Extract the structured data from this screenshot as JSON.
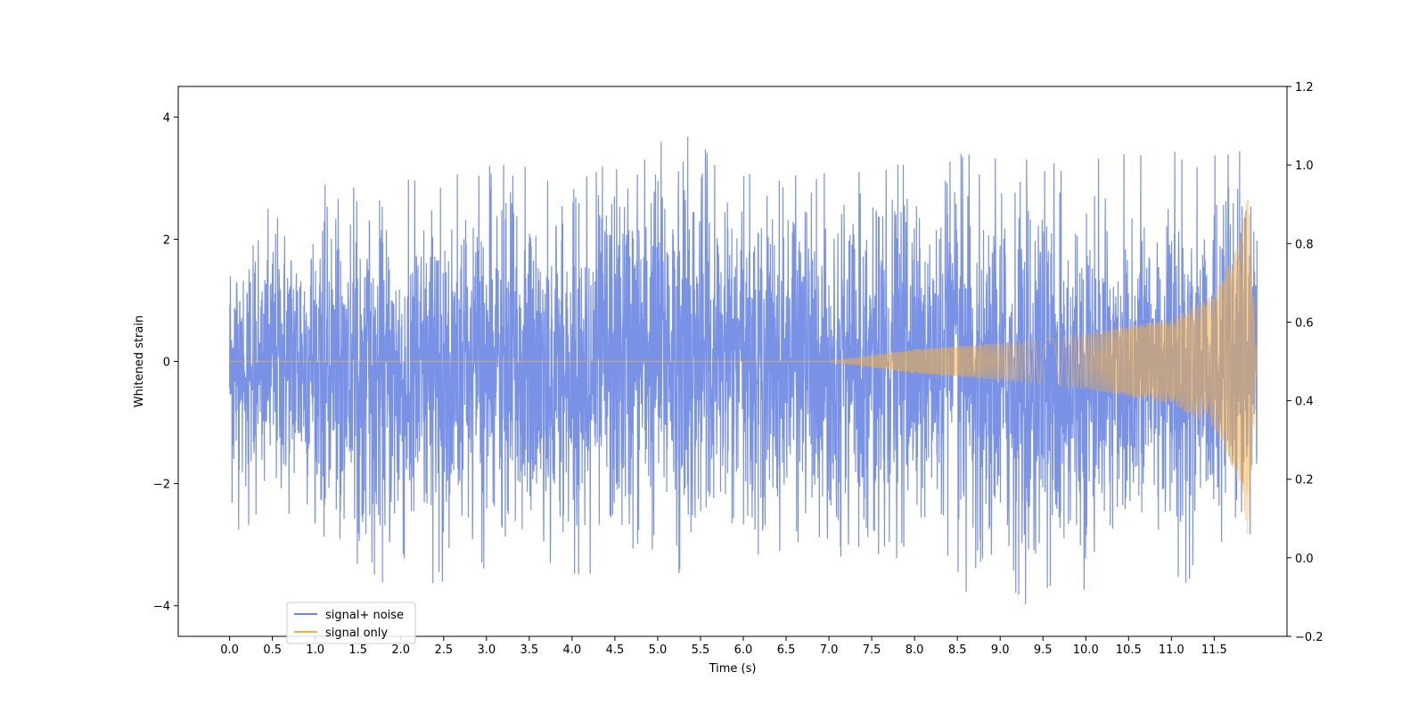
{
  "chart_data": {
    "type": "line",
    "title": "",
    "xlabel": "Time (s)",
    "ylabel": "Whitened strain",
    "xlim": [
      -0.6,
      12.35
    ],
    "ylim": [
      -4.5,
      4.5
    ],
    "y2lim": [
      -0.2,
      1.2
    ],
    "xticks": [
      0.0,
      0.5,
      1.0,
      1.5,
      2.0,
      2.5,
      3.0,
      3.5,
      4.0,
      4.5,
      5.0,
      5.5,
      6.0,
      6.5,
      7.0,
      7.5,
      8.0,
      8.5,
      9.0,
      9.5,
      10.0,
      10.5,
      11.0,
      11.5
    ],
    "xtick_labels": [
      "0.0",
      "0.5",
      "1.0",
      "1.5",
      "2.0",
      "2.5",
      "3.0",
      "3.5",
      "4.0",
      "4.5",
      "5.0",
      "5.5",
      "6.0",
      "6.5",
      "7.0",
      "7.5",
      "8.0",
      "8.5",
      "9.0",
      "9.5",
      "10.0",
      "10.5",
      "11.0",
      "11.5"
    ],
    "yticks": [
      -4,
      -2,
      0,
      2,
      4
    ],
    "ytick_labels": [
      "−4",
      "−2",
      "0",
      "2",
      "4"
    ],
    "y2ticks": [
      -0.2,
      0.0,
      0.2,
      0.4,
      0.6,
      0.8,
      1.0,
      1.2
    ],
    "y2tick_labels": [
      "−0.2",
      "0.0",
      "0.2",
      "0.4",
      "0.6",
      "0.8",
      "1.0",
      "1.2"
    ],
    "grid": false,
    "legend_position": "lower-left",
    "series": [
      {
        "name": "signal+ noise",
        "color": "#6a86e2",
        "description_points": {
          "t": [
            0.0,
            1.0,
            2.0,
            3.0,
            4.0,
            5.0,
            6.0,
            7.0,
            8.0,
            9.0,
            10.0,
            11.0,
            11.9,
            12.0
          ],
          "upper_envelope": [
            2.7,
            2.9,
            3.0,
            3.3,
            3.2,
            4.1,
            3.2,
            3.2,
            3.4,
            3.5,
            3.3,
            3.6,
            3.6,
            2.1
          ],
          "lower_envelope": [
            -2.9,
            -2.8,
            -3.9,
            -3.5,
            -3.6,
            -3.6,
            -3.3,
            -3.2,
            -3.5,
            -4.1,
            -3.8,
            -3.7,
            -3.6,
            -2.0
          ]
        }
      },
      {
        "name": "signal only",
        "color": "#f5b041",
        "description_points": {
          "t": [
            0.0,
            7.0,
            7.5,
            8.0,
            9.0,
            10.0,
            11.0,
            11.5,
            11.8,
            11.9,
            12.0
          ],
          "amplitude": [
            0.0,
            0.0,
            0.1,
            0.2,
            0.3,
            0.45,
            0.7,
            1.1,
            2.0,
            2.9,
            0.0
          ]
        }
      }
    ]
  }
}
